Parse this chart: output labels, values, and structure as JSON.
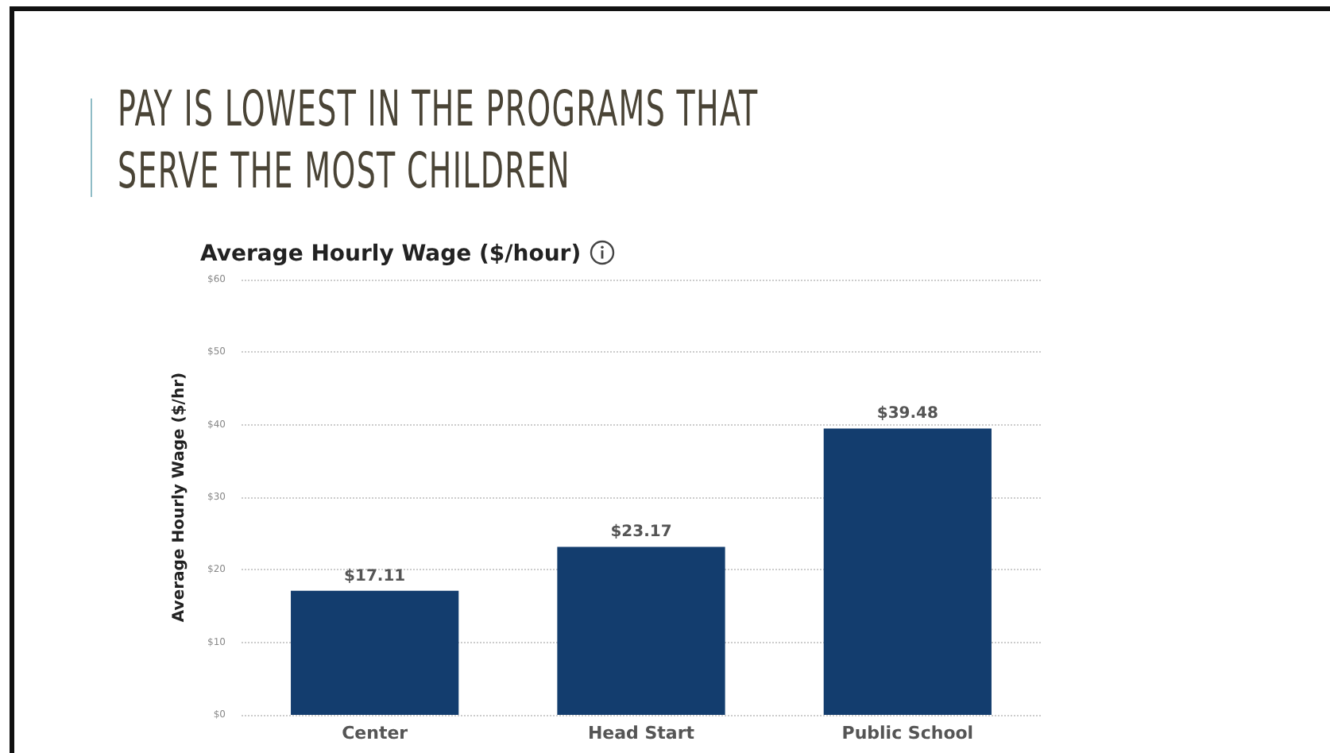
{
  "chart_data": {
    "type": "bar",
    "title": "PAY IS LOWEST IN THE PROGRAMS THAT SERVE THE MOST CHILDREN",
    "subtitle": "Average Hourly Wage ($/hour)",
    "ylabel": "Average Hourly Wage ($/hr)",
    "categories": [
      "Center",
      "Head Start",
      "Public School"
    ],
    "values": [
      17.11,
      23.17,
      39.48
    ],
    "value_labels": [
      "$17.11",
      "$23.17",
      "$39.48"
    ],
    "color": "#133d6e",
    "ylim": [
      0,
      60
    ],
    "yticks": [
      {
        "value": 0,
        "label": "$0"
      },
      {
        "value": 10,
        "label": "$10"
      },
      {
        "value": 20,
        "label": "$20"
      },
      {
        "value": 30,
        "label": "$30"
      },
      {
        "value": 40,
        "label": "$40"
      },
      {
        "value": 50,
        "label": "$50"
      },
      {
        "value": 60,
        "label": "$60"
      }
    ],
    "grid": "y"
  }
}
